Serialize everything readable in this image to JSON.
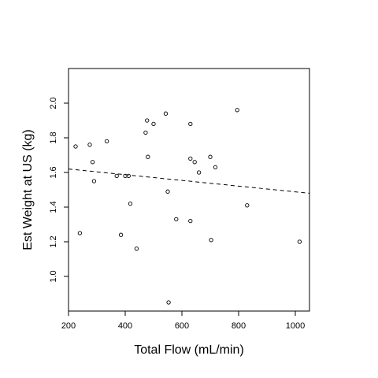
{
  "chart_data": {
    "type": "scatter",
    "xlabel": "Total Flow (mL/min)",
    "ylabel": "Est Weight at US (kg)",
    "xlim": [
      200,
      1050
    ],
    "ylim": [
      0.8,
      2.2
    ],
    "xticks": [
      200,
      400,
      600,
      800,
      1000
    ],
    "yticks": [
      1.0,
      1.2,
      1.4,
      1.6,
      1.8,
      2.0
    ],
    "xtick_labels": [
      "200",
      "400",
      "600",
      "800",
      "1000"
    ],
    "ytick_labels": [
      "1.0",
      "1.2",
      "1.4",
      "1.6",
      "1.8",
      "2.0"
    ],
    "grid": false,
    "points": [
      {
        "x": 225,
        "y": 1.75
      },
      {
        "x": 240,
        "y": 1.25
      },
      {
        "x": 275,
        "y": 1.76
      },
      {
        "x": 285,
        "y": 1.66
      },
      {
        "x": 290,
        "y": 1.55
      },
      {
        "x": 335,
        "y": 1.78
      },
      {
        "x": 370,
        "y": 1.58
      },
      {
        "x": 385,
        "y": 1.24
      },
      {
        "x": 400,
        "y": 1.58
      },
      {
        "x": 412,
        "y": 1.58
      },
      {
        "x": 418,
        "y": 1.42
      },
      {
        "x": 440,
        "y": 1.16
      },
      {
        "x": 472,
        "y": 1.83
      },
      {
        "x": 477,
        "y": 1.9
      },
      {
        "x": 480,
        "y": 1.69
      },
      {
        "x": 500,
        "y": 1.88
      },
      {
        "x": 543,
        "y": 1.94
      },
      {
        "x": 550,
        "y": 1.49
      },
      {
        "x": 553,
        "y": 0.85
      },
      {
        "x": 580,
        "y": 1.33
      },
      {
        "x": 630,
        "y": 1.88
      },
      {
        "x": 630,
        "y": 1.68
      },
      {
        "x": 630,
        "y": 1.32
      },
      {
        "x": 645,
        "y": 1.66
      },
      {
        "x": 660,
        "y": 1.6
      },
      {
        "x": 700,
        "y": 1.69
      },
      {
        "x": 703,
        "y": 1.21
      },
      {
        "x": 718,
        "y": 1.63
      },
      {
        "x": 795,
        "y": 1.96
      },
      {
        "x": 830,
        "y": 1.41
      },
      {
        "x": 1015,
        "y": 1.2
      }
    ],
    "trend_line": {
      "style": "dashed",
      "x": [
        200,
        1050
      ],
      "y": [
        1.62,
        1.48
      ]
    }
  }
}
